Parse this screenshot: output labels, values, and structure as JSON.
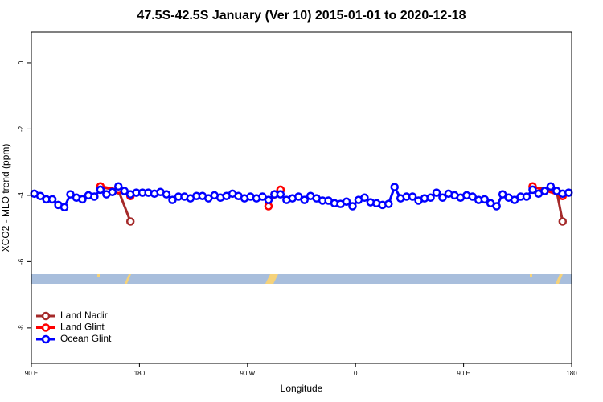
{
  "chart_data": {
    "type": "line",
    "title": "47.5S-42.5S January (Ver 10)   2015-01-01 to 2020-12-18",
    "xlabel": "Longitude",
    "ylabel": "XCO2 - MLO trend (ppm)",
    "xlim": [
      90,
      540
    ],
    "ylim": [
      -9.07,
      0.92
    ],
    "xticks": [
      {
        "value": 90,
        "label": "90 E"
      },
      180,
      {
        "value": 270,
        "label": "90 W"
      },
      {
        "value": 360,
        "label": "0"
      },
      {
        "value": 450,
        "label": "90 E"
      },
      {
        "value": 540,
        "label": "180"
      }
    ],
    "yticks": [
      -8,
      -6,
      -4,
      -2,
      0
    ],
    "legend": "bottomleft",
    "series": [
      {
        "name": "Land Nadir",
        "color": "#a52a2a",
        "x": [
          147.5,
          162.5,
          172.5,
          230,
          292.5,
          297.5,
          400,
          507.5,
          527.5,
          532.5
        ],
        "values": [
          -3.75,
          -3.85,
          -4.79,
          null,
          -3.97,
          -3.85,
          null,
          -3.75,
          -3.87,
          -4.79
        ]
      },
      {
        "name": "Land Glint",
        "color": "#ff0000",
        "x": [
          147.5,
          162.5,
          172.5,
          230,
          287.5,
          292.5,
          297.5,
          400,
          507.5,
          532.5
        ],
        "values": [
          -3.73,
          -3.83,
          -4.02,
          null,
          -4.33,
          -3.97,
          -3.83,
          null,
          -3.73,
          -4.02
        ]
      },
      {
        "name": "Ocean Glint",
        "color": "#0000ff",
        "x": [
          92.5,
          97.5,
          102.5,
          107.5,
          112.5,
          117.5,
          122.5,
          127.5,
          132.5,
          137.5,
          142.5,
          147.5,
          152.5,
          157.5,
          162.5,
          167.5,
          172.5,
          177.5,
          182.5,
          187.5,
          192.5,
          197.5,
          202.5,
          207.5,
          212.5,
          217.5,
          222.5,
          227.5,
          232.5,
          237.5,
          242.5,
          247.5,
          252.5,
          257.5,
          262.5,
          267.5,
          272.5,
          277.5,
          282.5,
          287.5,
          292.5,
          297.5,
          302.5,
          307.5,
          312.5,
          317.5,
          322.5,
          327.5,
          332.5,
          337.5,
          342.5,
          347.5,
          352.5,
          357.5,
          362.5,
          367.5,
          372.5,
          377.5,
          382.5,
          387.5,
          392.5,
          397.5,
          402.5,
          407.5,
          412.5,
          417.5,
          422.5,
          427.5,
          432.5,
          437.5,
          442.5,
          447.5,
          452.5,
          457.5,
          462.5,
          467.5,
          472.5,
          477.5,
          482.5,
          487.5,
          492.5,
          497.5,
          502.5,
          507.5,
          512.5,
          517.5,
          522.5,
          527.5,
          532.5,
          537.5
        ],
        "values": [
          -3.95,
          -4.02,
          -4.12,
          -4.12,
          -4.29,
          -4.36,
          -3.97,
          -4.07,
          -4.12,
          -4.0,
          -4.04,
          -3.83,
          -3.97,
          -3.9,
          -3.73,
          -3.87,
          -3.97,
          -3.92,
          -3.92,
          -3.92,
          -3.95,
          -3.9,
          -3.97,
          -4.14,
          -4.04,
          -4.04,
          -4.09,
          -4.02,
          -4.02,
          -4.09,
          -4.0,
          -4.07,
          -4.02,
          -3.95,
          -4.02,
          -4.09,
          -4.04,
          -4.09,
          -4.04,
          -4.14,
          -3.97,
          -3.97,
          -4.14,
          -4.09,
          -4.04,
          -4.14,
          -4.02,
          -4.09,
          -4.16,
          -4.16,
          -4.24,
          -4.26,
          -4.19,
          -4.33,
          -4.14,
          -4.07,
          -4.21,
          -4.24,
          -4.29,
          -4.26,
          -3.75,
          -4.09,
          -4.04,
          -4.04,
          -4.16,
          -4.09,
          -4.07,
          -3.92,
          -4.07,
          -3.95,
          -4.0,
          -4.07,
          -4.0,
          -4.04,
          -4.14,
          -4.12,
          -4.24,
          -4.33,
          -3.97,
          -4.07,
          -4.14,
          -4.04,
          -4.04,
          -3.83,
          -3.95,
          -3.87,
          -3.73,
          -3.87,
          -3.95,
          -3.92
        ]
      }
    ]
  }
}
